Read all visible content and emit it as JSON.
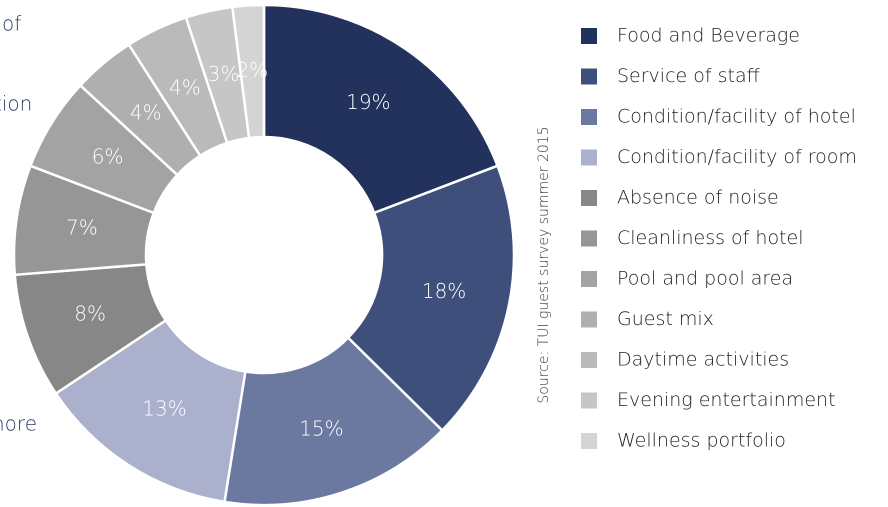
{
  "chart_data": {
    "type": "donut",
    "categories": [
      "Food and Beverage",
      "Service of staff",
      "Condition/facility of hotel",
      "Condition/facility of room",
      "Absence of noise",
      "Cleanliness of hotel",
      "Pool and pool area",
      "Guest mix",
      "Daytime activities",
      "Evening entertainment",
      "Wellness portfolio"
    ],
    "values": [
      19,
      18,
      15,
      13,
      8,
      7,
      6,
      4,
      4,
      3,
      2
    ],
    "value_labels": [
      "19%",
      "18%",
      "15%",
      "13%",
      "8%",
      "7%",
      "6%",
      "4%",
      "4%",
      "3%",
      "2%"
    ],
    "colors": [
      "#22325c",
      "#3e4f7b",
      "#6b789f",
      "#abb1cd",
      "#878787",
      "#969696",
      "#a3a3a3",
      "#afafaf",
      "#bababa",
      "#c6c6c6",
      "#d4d4d4"
    ],
    "source": "Source: TUI guest survey summer 2015",
    "annotations": [
      "of",
      "tion",
      "nore"
    ]
  }
}
